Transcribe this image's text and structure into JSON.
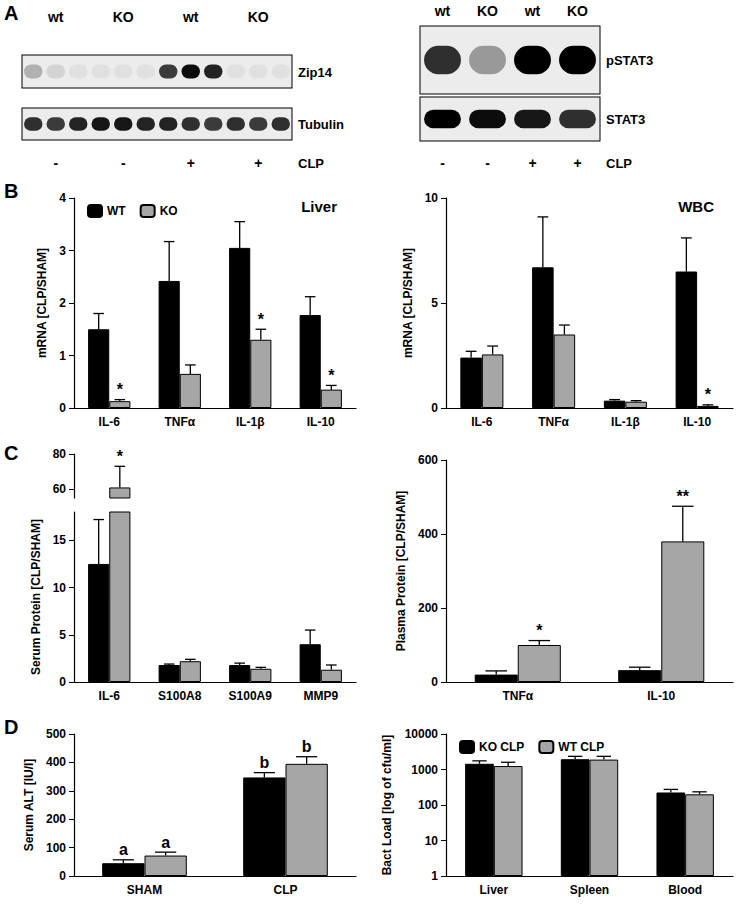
{
  "panel_labels": [
    "A",
    "B",
    "C",
    "D"
  ],
  "blots": [
    {
      "lanes": [
        "wt",
        "KO",
        "wt",
        "KO"
      ],
      "condition": [
        "-",
        "-",
        "+",
        "+"
      ],
      "condition_label": "CLP",
      "rows": [
        {
          "label": "Zip14",
          "bands": [
            [
              0.25,
              0.1,
              0.05
            ],
            [
              0.05,
              0.05,
              0.05
            ],
            [
              0.75,
              0.95,
              0.85
            ],
            [
              0.05,
              0.05,
              0.05
            ]
          ]
        },
        {
          "label": "Tubulin",
          "bands": [
            [
              0.8,
              0.75,
              0.85
            ],
            [
              0.9,
              0.9,
              0.85
            ],
            [
              0.85,
              0.8,
              0.75
            ],
            [
              0.8,
              0.75,
              0.8
            ]
          ]
        }
      ]
    },
    {
      "lanes": [
        "wt",
        "KO",
        "wt",
        "KO"
      ],
      "condition": [
        "-",
        "-",
        "+",
        "+"
      ],
      "condition_label": "CLP",
      "rows": [
        {
          "label": "pSTAT3",
          "bands": [
            [
              0.8
            ],
            [
              0.35
            ],
            [
              1.0
            ],
            [
              1.0
            ]
          ]
        },
        {
          "label": "STAT3",
          "bands": [
            [
              1.0
            ],
            [
              0.95
            ],
            [
              0.9
            ],
            [
              0.8
            ]
          ]
        }
      ]
    }
  ],
  "chart_data": [
    {
      "type": "bar",
      "title": "Liver",
      "y_label": "mRNA [CLP/SHAM]",
      "categories": [
        "IL-6",
        "TNFα",
        "IL-1β",
        "IL-10"
      ],
      "ylim": [
        0,
        4
      ],
      "yticks": [
        0,
        1,
        2,
        3,
        4
      ],
      "grid": false,
      "legend": "top-left",
      "series": [
        {
          "name": "WT",
          "color": "#000000",
          "values": [
            1.5,
            2.42,
            3.05,
            1.77
          ],
          "errors": [
            0.3,
            0.75,
            0.5,
            0.35
          ]
        },
        {
          "name": "KO",
          "color": "#a6a6a6",
          "values": [
            0.13,
            0.65,
            1.3,
            0.35
          ],
          "errors": [
            0.03,
            0.17,
            0.2,
            0.08
          ]
        }
      ],
      "annotations": [
        {
          "text": "*",
          "series": 1,
          "category": "IL-6"
        },
        {
          "text": "*",
          "series": 1,
          "category": "IL-1β"
        },
        {
          "text": "*",
          "series": 1,
          "category": "IL-10"
        }
      ]
    },
    {
      "type": "bar",
      "title": "WBC",
      "y_label": "mRNA [CLP/SHAM]",
      "categories": [
        "IL-6",
        "TNFα",
        "IL-1β",
        "IL-10"
      ],
      "ylim": [
        0,
        10
      ],
      "yticks": [
        0,
        5,
        10
      ],
      "grid": false,
      "series": [
        {
          "color": "#000000",
          "values": [
            2.4,
            6.7,
            0.35,
            6.5
          ],
          "errors": [
            0.3,
            2.4,
            0.05,
            1.6
          ]
        },
        {
          "color": "#a6a6a6",
          "values": [
            2.55,
            3.5,
            0.3,
            0.1
          ],
          "errors": [
            0.4,
            0.45,
            0.05,
            0.05
          ]
        }
      ],
      "annotations": [
        {
          "text": "*",
          "series": 1,
          "category": "IL-10"
        }
      ]
    },
    {
      "type": "bar",
      "y_label": "Serum Protein [CLP/SHAM]",
      "categories": [
        "IL-6",
        "S100A8",
        "S100A9",
        "MMP9"
      ],
      "ylim": [
        0,
        80
      ],
      "ybreak": [
        18,
        55
      ],
      "yticks": [
        0,
        5,
        10,
        15,
        60,
        80
      ],
      "grid": false,
      "series": [
        {
          "color": "#000000",
          "values": [
            12.5,
            1.8,
            1.8,
            4.0
          ],
          "errors": [
            4.7,
            0.1,
            0.2,
            1.5
          ]
        },
        {
          "color": "#a6a6a6",
          "values": [
            61,
            2.2,
            1.4,
            1.3
          ],
          "errors": [
            12,
            0.2,
            0.15,
            0.5
          ]
        }
      ],
      "annotations": [
        {
          "text": "*",
          "series": 1,
          "category": "IL-6"
        }
      ]
    },
    {
      "type": "bar",
      "y_label": "Plasma Protein [CLP/SHAM]",
      "categories": [
        "TNFα",
        "IL-10"
      ],
      "ylim": [
        0,
        600
      ],
      "yticks": [
        0,
        200,
        400,
        600
      ],
      "grid": false,
      "series": [
        {
          "color": "#000000",
          "values": [
            20,
            32
          ],
          "errors": [
            10,
            8
          ]
        },
        {
          "color": "#a6a6a6",
          "values": [
            100,
            380
          ],
          "errors": [
            12,
            95
          ]
        }
      ],
      "annotations": [
        {
          "text": "*",
          "series": 1,
          "category": "TNFα"
        },
        {
          "text": "**",
          "series": 1,
          "category": "IL-10"
        }
      ]
    },
    {
      "type": "bar",
      "y_label": "Serum ALT [IU/l]",
      "categories": [
        "SHAM",
        "CLP"
      ],
      "ylim": [
        0,
        500
      ],
      "yticks": [
        0,
        100,
        200,
        300,
        400,
        500
      ],
      "grid": false,
      "series": [
        {
          "color": "#000000",
          "values": [
            45,
            347
          ],
          "errors": [
            12,
            17
          ]
        },
        {
          "color": "#a6a6a6",
          "values": [
            72,
            395
          ],
          "errors": [
            12,
            25
          ]
        }
      ],
      "annotations": [
        {
          "text": "a",
          "series": 0,
          "category": "SHAM"
        },
        {
          "text": "a",
          "series": 1,
          "category": "SHAM"
        },
        {
          "text": "b",
          "series": 0,
          "category": "CLP"
        },
        {
          "text": "b",
          "series": 1,
          "category": "CLP"
        }
      ]
    },
    {
      "type": "bar",
      "y_label": "Bact Load [log of cfu/ml]",
      "log": "y",
      "categories": [
        "Liver",
        "Spleen",
        "Blood"
      ],
      "ylim": [
        1,
        10000
      ],
      "yticks": [
        1,
        10,
        100,
        1000,
        10000
      ],
      "grid": false,
      "legend": "top-left",
      "series": [
        {
          "name": "KO CLP",
          "color": "#000000",
          "values": [
            1450,
            1950,
            225
          ],
          "errors": [
            300,
            400,
            50
          ]
        },
        {
          "name": "WT CLP",
          "color": "#a6a6a6",
          "values": [
            1250,
            1900,
            200
          ],
          "errors": [
            350,
            450,
            35
          ]
        }
      ]
    }
  ]
}
